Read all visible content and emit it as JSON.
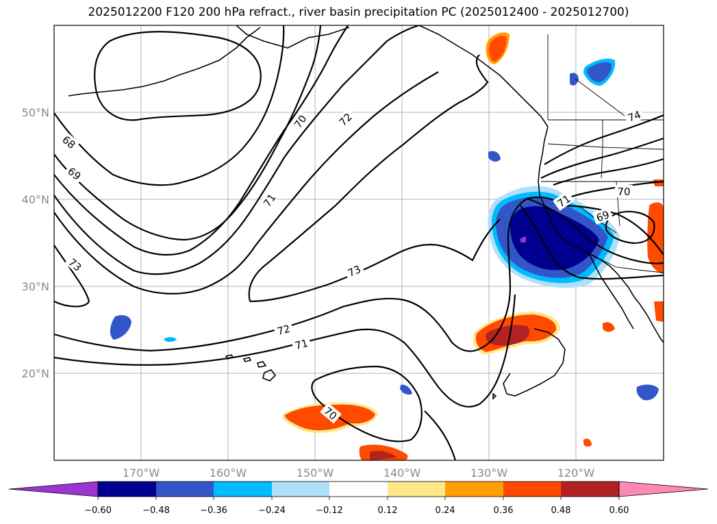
{
  "title": "2025012200 F120 200 hPa refract., river basin precipitation PC (2025012400 - 2025012700)",
  "lat_labels": [
    "50°N",
    "40°N",
    "30°N",
    "20°N"
  ],
  "lon_labels": [
    "170°W",
    "160°W",
    "150°W",
    "140°W",
    "130°W",
    "120°W"
  ],
  "contour_labels": [
    "68",
    "69",
    "70",
    "71",
    "72",
    "73",
    "73",
    "72",
    "71",
    "70",
    "70",
    "71",
    "69",
    "74"
  ],
  "colorbar": {
    "ticks": [
      "−0.60",
      "−0.48",
      "−0.36",
      "−0.24",
      "−0.12",
      "0.12",
      "0.24",
      "0.36",
      "0.48",
      "0.60"
    ],
    "colors": [
      "#9b35d0",
      "#00008f",
      "#3256c8",
      "#00bbff",
      "#aee0f8",
      "#ffffff",
      "#ffe88a",
      "#ffa000",
      "#ff4a00",
      "#b22222",
      "#ff89b5"
    ]
  },
  "region": {
    "lon_range": [
      "180°W",
      "110°W"
    ],
    "lat_range": [
      "10°N",
      "60°N"
    ],
    "gridlines": true,
    "contour_field": "200 hPa refractivity",
    "shaded_field": "river basin precipitation PC"
  }
}
